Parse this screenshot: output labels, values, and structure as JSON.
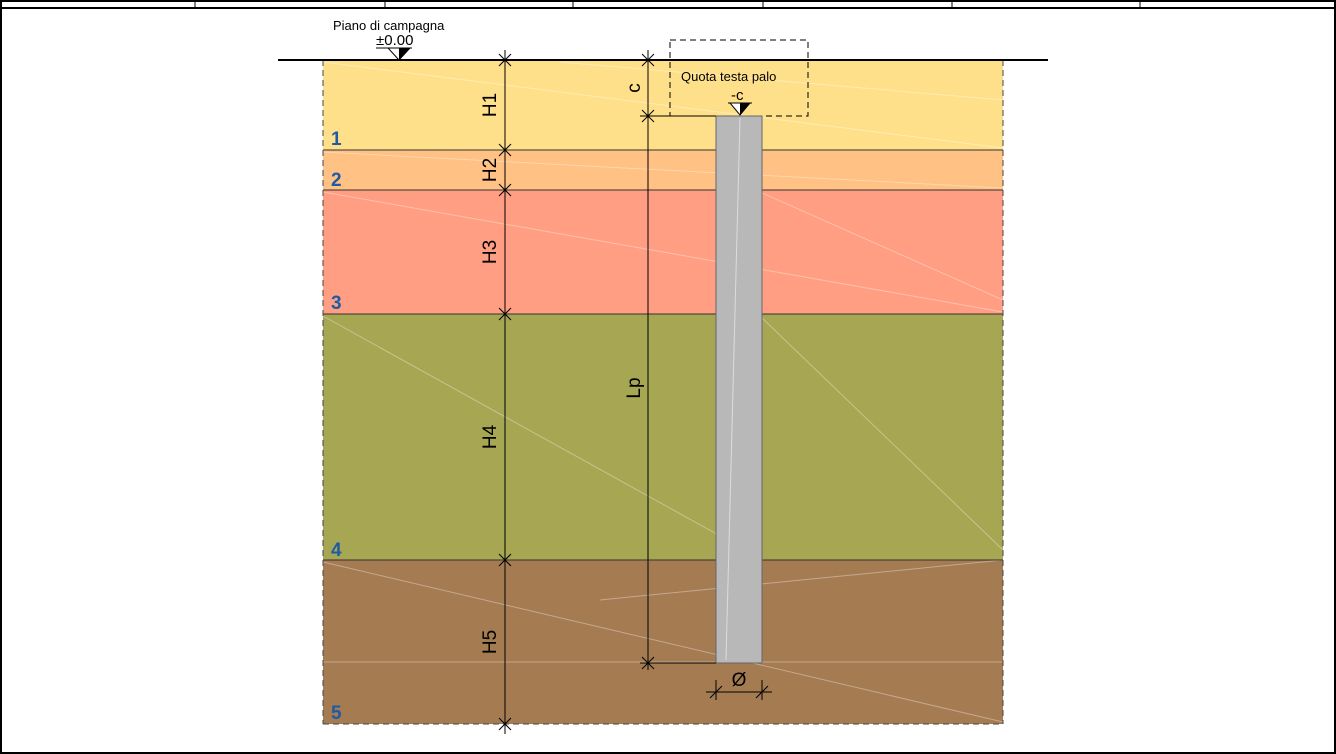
{
  "ground_level": {
    "label": "Piano di campagna",
    "value": "±0.00"
  },
  "pile_head": {
    "label": "Quota testa palo",
    "value": "-c"
  },
  "dimensions": {
    "cover": "c",
    "pile_length": "Lp",
    "diameter": "Ø",
    "thicknesses": [
      "H1",
      "H2",
      "H3",
      "H4",
      "H5"
    ]
  },
  "layers": [
    {
      "number": "1",
      "thickness_label": "H1",
      "color": "#FFE08A"
    },
    {
      "number": "2",
      "thickness_label": "H2",
      "color": "#FFC184"
    },
    {
      "number": "3",
      "thickness_label": "H3",
      "color": "#FF9E82"
    },
    {
      "number": "4",
      "thickness_label": "H4",
      "color": "#A6A653"
    },
    {
      "number": "5",
      "thickness_label": "H5",
      "color": "#A57B52"
    }
  ],
  "colors": {
    "pile": "#B8B8B8",
    "layer_number": "#1F5AA6"
  }
}
